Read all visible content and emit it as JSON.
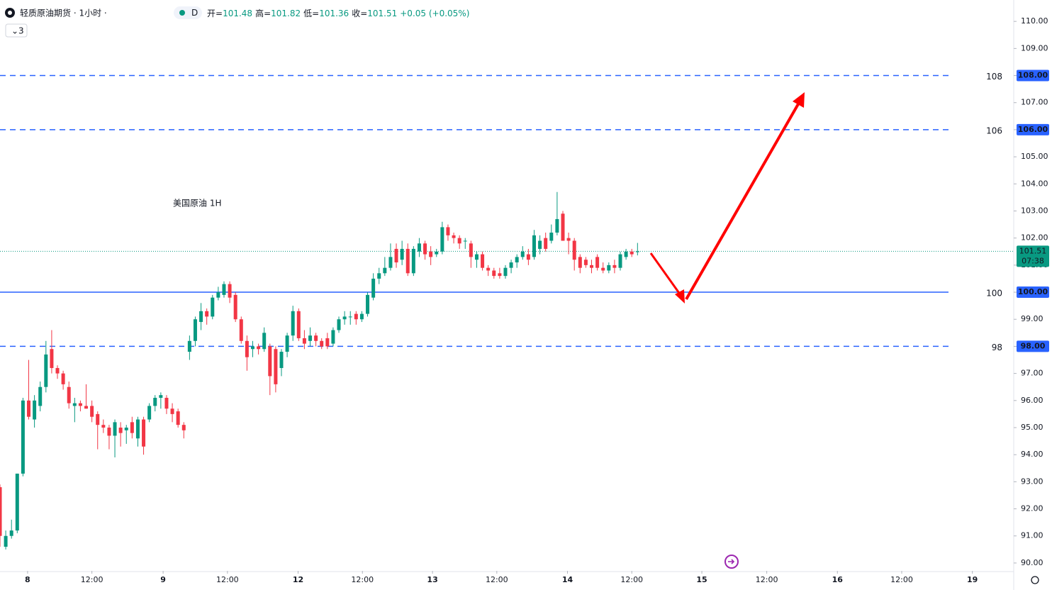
{
  "chart_data": {
    "type": "candlestick",
    "symbol": "轻质原油期货 · 1小时 ·",
    "indicator_count": "3",
    "ohlc_labels": [
      "开=",
      "高=",
      "低=",
      "收="
    ],
    "ohlc_values": [
      101.48,
      101.82,
      101.36,
      101.51
    ],
    "change": "+0.05 (+0.05%)",
    "annotation": "美国原油 1H",
    "up_color": "#089981",
    "down_color": "#f23645",
    "level_color": "#2962ff",
    "last_price": {
      "value": 101.51,
      "label": "101.51",
      "countdown": "07:38"
    },
    "ylim": [
      89.71,
      110.79
    ],
    "xlim": [
      0,
      176.5
    ],
    "yticks": [
      {
        "value": 90,
        "label": "90.00"
      },
      {
        "value": 91,
        "label": "91.00"
      },
      {
        "value": 92,
        "label": "92.00"
      },
      {
        "value": 93,
        "label": "93.00"
      },
      {
        "value": 94,
        "label": "94.00"
      },
      {
        "value": 95,
        "label": "95.00"
      },
      {
        "value": 96,
        "label": "96.00"
      },
      {
        "value": 97,
        "label": "97.00"
      },
      {
        "value": 98,
        "label": "98.00"
      },
      {
        "value": 99,
        "label": "99.00"
      },
      {
        "value": 100,
        "label": "100.00"
      },
      {
        "value": 101,
        "label": "101.00"
      },
      {
        "value": 102,
        "label": "102.00"
      },
      {
        "value": 103,
        "label": "103.00"
      },
      {
        "value": 104,
        "label": "104.00"
      },
      {
        "value": 105,
        "label": "105.00"
      },
      {
        "value": 106,
        "label": "106.00"
      },
      {
        "value": 107,
        "label": "107.00"
      },
      {
        "value": 108,
        "label": "108.00"
      },
      {
        "value": 109,
        "label": "109.00"
      },
      {
        "value": 110,
        "label": "110.00"
      }
    ],
    "xticks": [
      {
        "value": 4.8,
        "label": "8"
      },
      {
        "value": 16,
        "label": "12:00"
      },
      {
        "value": 28.4,
        "label": "9"
      },
      {
        "value": 39.6,
        "label": "12:00"
      },
      {
        "value": 51.9,
        "label": "12"
      },
      {
        "value": 63.1,
        "label": "12:00"
      },
      {
        "value": 75.3,
        "label": "13"
      },
      {
        "value": 86.5,
        "label": "12:00"
      },
      {
        "value": 98.8,
        "label": "14"
      },
      {
        "value": 110,
        "label": "12:00"
      },
      {
        "value": 122.2,
        "label": "15"
      },
      {
        "value": 133.5,
        "label": "12:00"
      },
      {
        "value": 145.8,
        "label": "16"
      },
      {
        "value": 157,
        "label": "12:00"
      },
      {
        "value": 169.3,
        "label": "19"
      }
    ],
    "levels": [
      {
        "value": 108,
        "label": "108",
        "badge": "108.00",
        "style": "dashed"
      },
      {
        "value": 106,
        "label": "106",
        "badge": "106.00",
        "style": "dashed"
      },
      {
        "value": 100,
        "label": "100",
        "badge": "100.00",
        "style": "solid"
      },
      {
        "value": 98,
        "label": "98",
        "badge": "98.00",
        "style": "dashed"
      }
    ],
    "x": [
      0,
      1,
      2,
      3,
      4,
      5,
      6,
      7,
      8,
      9,
      10,
      11,
      12,
      13,
      14,
      15,
      16,
      17,
      18,
      19,
      20,
      21,
      22,
      23,
      24,
      25,
      26,
      27,
      28,
      29,
      30,
      31,
      32,
      33,
      34,
      35,
      36,
      37,
      38,
      39,
      40,
      41,
      42,
      43,
      44,
      45,
      46,
      47,
      48,
      49,
      50,
      51,
      52,
      53,
      54,
      55,
      56,
      57,
      58,
      59,
      60,
      61,
      62,
      63,
      64,
      65,
      66,
      67,
      68,
      69,
      70,
      71,
      72,
      73,
      74,
      75,
      76,
      77,
      78,
      79,
      80,
      81,
      82,
      83,
      84,
      85,
      86,
      87,
      88,
      89,
      90,
      91,
      92,
      93,
      94,
      95,
      96,
      97,
      98,
      99,
      100,
      101,
      102,
      103,
      104,
      105,
      106,
      107,
      108,
      109,
      110,
      111
    ],
    "open": [
      92.8,
      90.6,
      91.0,
      91.2,
      93.3,
      96.0,
      95.3,
      95.8,
      96.5,
      97.9,
      97.2,
      97.0,
      96.5,
      95.8,
      95.9,
      95.8,
      95.8,
      95.5,
      95.1,
      95.0,
      94.7,
      95.0,
      94.9,
      95.2,
      94.6,
      95.3,
      95.3,
      95.8,
      96.1,
      96.1,
      95.7,
      95.6,
      95.1,
      97.8,
      98.2,
      98.9,
      99.3,
      99.1,
      99.8,
      99.9,
      100.3,
      99.9,
      99.0,
      98.2,
      97.9,
      98.0,
      97.9,
      98.0,
      97.9,
      97.2,
      97.8,
      98.4,
      99.3,
      98.3,
      98.2,
      98.4,
      98.2,
      98.3,
      98.1,
      98.6,
      99.0,
      99.1,
      99.2,
      99.0,
      99.2,
      99.8,
      100.5,
      100.7,
      100.9,
      101.6,
      101.2,
      101.6,
      100.7,
      101.5,
      101.8,
      101.5,
      101.4,
      101.5,
      102.4,
      102.1,
      102.0,
      101.9,
      101.8,
      101.2,
      101.4,
      100.9,
      100.8,
      100.7,
      100.6,
      100.9,
      101.1,
      101.3,
      101.4,
      101.3,
      101.6,
      102.0,
      101.9,
      102.2,
      102.9,
      102.0,
      101.9,
      101.3,
      101.2,
      101.0,
      101.3,
      100.9,
      100.8,
      101.0,
      100.9,
      101.3,
      101.5,
      101.48
    ],
    "high": [
      92.9,
      91.2,
      91.6,
      93.3,
      96.1,
      97.5,
      96.2,
      96.7,
      98.2,
      98.6,
      97.3,
      97.1,
      96.7,
      96.1,
      96.0,
      96.6,
      96.0,
      95.6,
      95.3,
      95.1,
      95.3,
      95.2,
      95.1,
      95.4,
      95.4,
      95.4,
      95.9,
      96.2,
      96.3,
      96.2,
      95.9,
      95.7,
      95.2,
      98.4,
      99.1,
      99.6,
      99.4,
      99.9,
      100.2,
      100.4,
      100.4,
      100.0,
      99.1,
      98.4,
      98.2,
      98.1,
      98.7,
      98.1,
      98.0,
      97.9,
      98.5,
      99.5,
      99.4,
      98.6,
      98.7,
      98.5,
      98.3,
      98.5,
      98.7,
      99.1,
      99.3,
      99.3,
      99.3,
      99.3,
      100.0,
      100.7,
      100.9,
      101.3,
      101.8,
      101.8,
      101.9,
      101.8,
      101.7,
      102.0,
      101.9,
      101.7,
      101.6,
      102.6,
      102.5,
      102.2,
      102.1,
      102.0,
      101.9,
      101.5,
      101.5,
      101.0,
      100.9,
      100.9,
      101.0,
      101.2,
      101.4,
      101.7,
      101.6,
      102.3,
      102.1,
      102.2,
      102.5,
      103.7,
      103.0,
      102.2,
      102.0,
      101.4,
      101.3,
      101.2,
      101.4,
      101.1,
      101.1,
      101.2,
      101.5,
      101.6,
      101.6,
      101.82
    ],
    "low": [
      90.6,
      90.5,
      90.9,
      91.1,
      93.2,
      95.3,
      95.0,
      95.6,
      96.3,
      97.0,
      96.8,
      96.4,
      95.7,
      95.2,
      95.6,
      95.7,
      95.2,
      94.2,
      94.8,
      94.2,
      93.9,
      94.3,
      94.4,
      94.6,
      94.3,
      94.0,
      95.2,
      95.6,
      95.7,
      95.5,
      95.2,
      95.0,
      94.6,
      97.5,
      98.0,
      98.6,
      98.8,
      99.0,
      99.7,
      99.8,
      99.6,
      98.9,
      98.1,
      97.1,
      97.6,
      97.7,
      97.8,
      96.2,
      96.3,
      96.9,
      97.6,
      98.2,
      98.2,
      97.9,
      98.0,
      98.0,
      97.9,
      97.9,
      98.0,
      98.5,
      98.8,
      98.8,
      98.8,
      98.9,
      99.1,
      99.7,
      100.3,
      100.6,
      100.8,
      100.9,
      101.0,
      100.6,
      100.6,
      101.3,
      101.2,
      101.0,
      101.3,
      101.4,
      101.9,
      101.8,
      101.6,
      101.6,
      100.9,
      100.9,
      100.8,
      100.6,
      100.5,
      100.5,
      100.5,
      100.7,
      100.9,
      101.2,
      101.0,
      101.2,
      101.4,
      101.5,
      101.8,
      102.1,
      101.9,
      101.4,
      100.8,
      100.7,
      100.9,
      100.7,
      100.8,
      100.7,
      100.7,
      100.7,
      100.8,
      101.2,
      101.3,
      101.36
    ],
    "close": [
      91.0,
      91.0,
      91.2,
      93.3,
      96.0,
      95.4,
      96.0,
      96.5,
      97.7,
      97.2,
      97.0,
      96.6,
      95.9,
      95.9,
      95.8,
      95.7,
      95.4,
      95.1,
      95.0,
      94.7,
      95.2,
      94.8,
      95.0,
      94.8,
      95.3,
      94.3,
      95.8,
      96.1,
      96.2,
      95.7,
      95.5,
      95.1,
      94.9,
      98.2,
      99.0,
      99.3,
      99.1,
      99.8,
      100.0,
      100.3,
      99.8,
      99.0,
      98.2,
      97.6,
      98.0,
      97.9,
      98.5,
      96.9,
      96.6,
      97.8,
      98.4,
      99.3,
      98.3,
      98.1,
      98.4,
      98.2,
      98.0,
      98.0,
      98.6,
      99.0,
      99.1,
      99.1,
      99.0,
      99.2,
      99.9,
      100.5,
      100.7,
      100.9,
      101.3,
      101.1,
      101.6,
      100.7,
      101.6,
      101.8,
      101.4,
      101.3,
      101.5,
      102.4,
      102.1,
      102.0,
      101.8,
      101.9,
      101.3,
      101.4,
      100.9,
      100.8,
      100.6,
      100.6,
      100.9,
      101.1,
      101.3,
      101.5,
      101.2,
      102.1,
      101.9,
      101.6,
      102.2,
      102.7,
      101.9,
      101.9,
      101.2,
      100.9,
      101.0,
      100.9,
      100.9,
      100.8,
      101.0,
      100.9,
      101.4,
      101.5,
      101.4,
      101.51
    ]
  }
}
